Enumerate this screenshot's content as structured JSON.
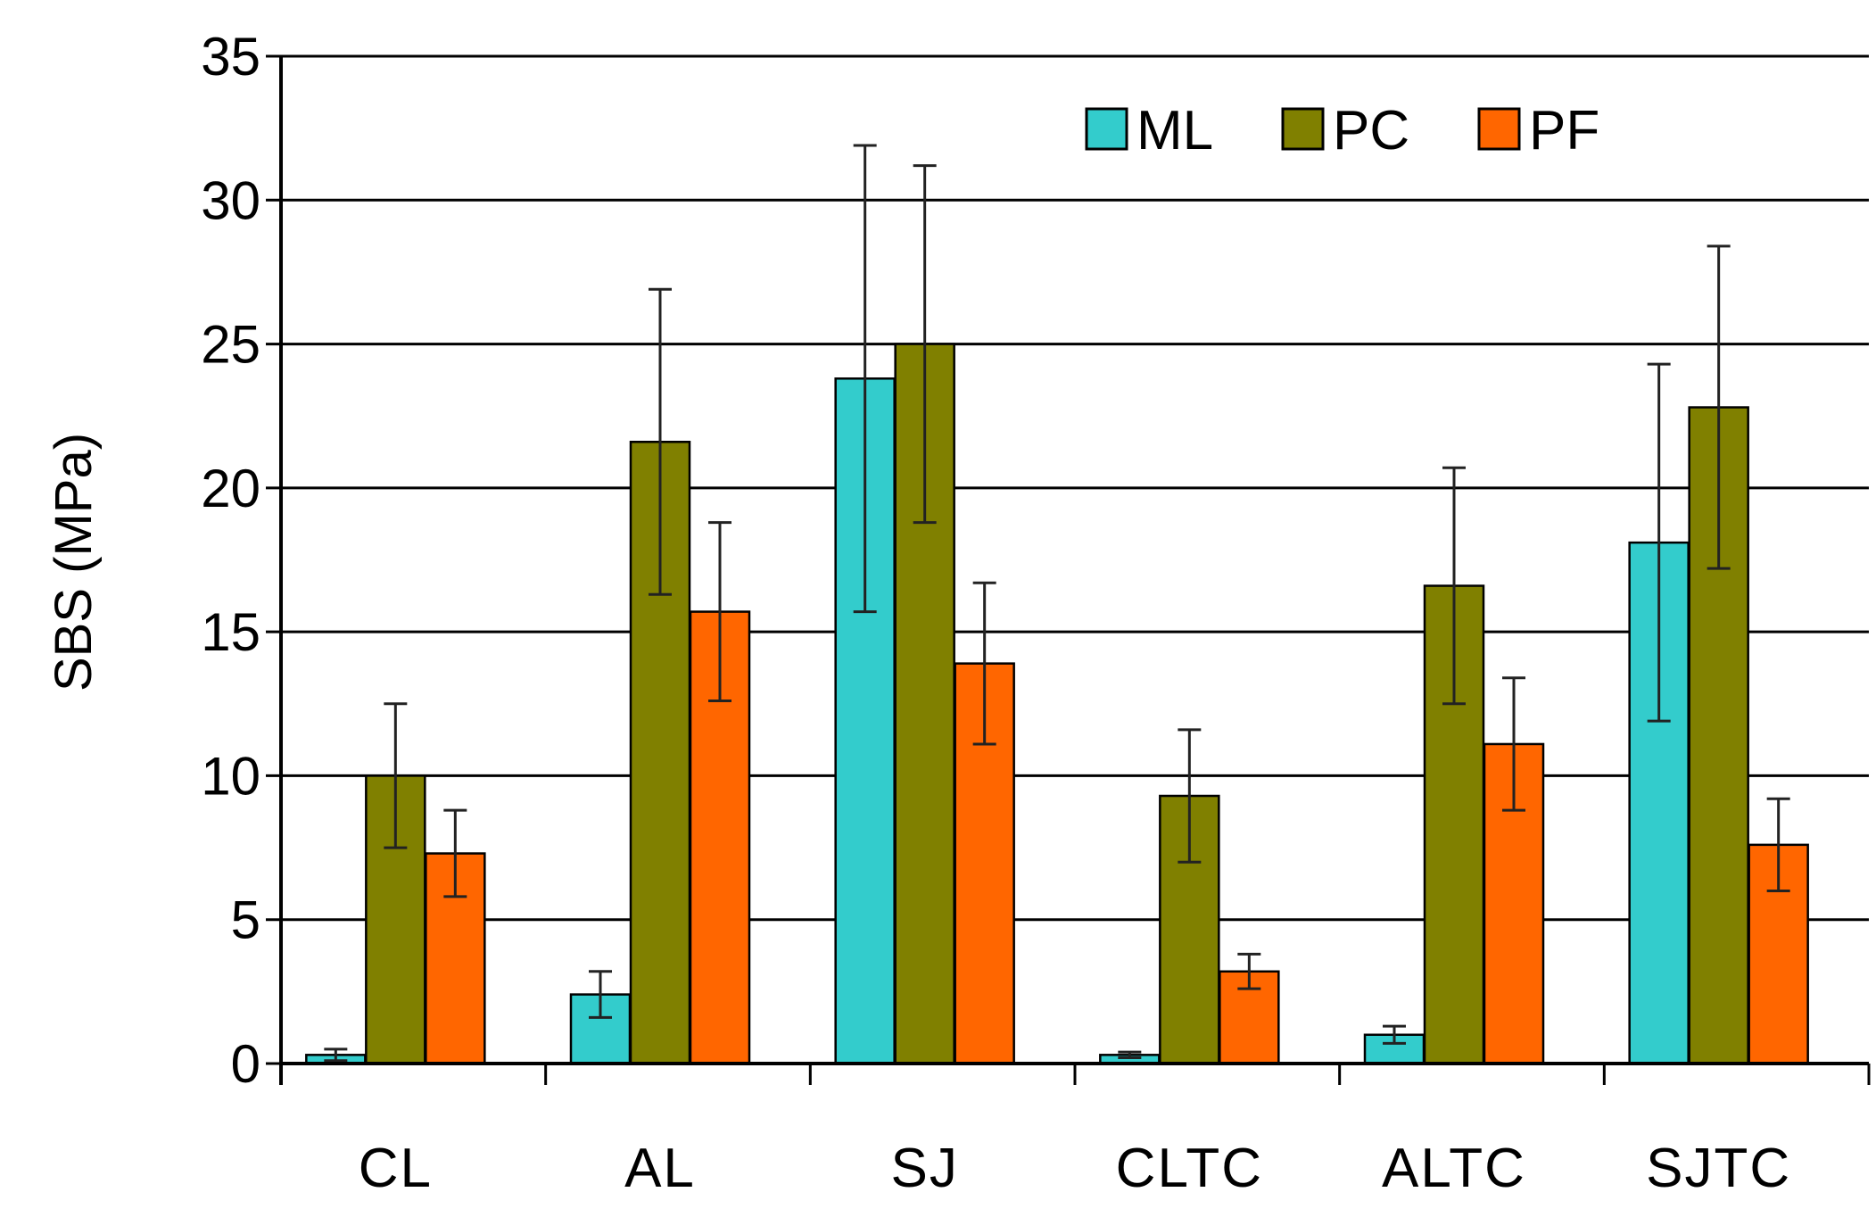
{
  "chart_data": {
    "type": "bar",
    "title": "",
    "xlabel": "",
    "ylabel": "SBS (MPa)",
    "ylim": [
      0,
      35
    ],
    "yticks": [
      0,
      5,
      10,
      15,
      20,
      25,
      30,
      35
    ],
    "grid": true,
    "legend_position": "top-right",
    "categories": [
      "CL",
      "AL",
      "SJ",
      "CLTC",
      "ALTC",
      "SJTC"
    ],
    "series": [
      {
        "name": "ML",
        "color": "#33CCCC",
        "values": [
          0.3,
          2.4,
          23.8,
          0.3,
          1.0,
          18.1
        ],
        "error": [
          0.2,
          0.8,
          8.1,
          0.1,
          0.3,
          6.2
        ]
      },
      {
        "name": "PC",
        "color": "#808000",
        "values": [
          10.0,
          21.6,
          25.0,
          9.3,
          16.6,
          22.8
        ],
        "error": [
          2.5,
          5.3,
          6.2,
          2.3,
          4.1,
          5.6
        ]
      },
      {
        "name": "PF",
        "color": "#FF6600",
        "values": [
          7.3,
          15.7,
          13.9,
          3.2,
          11.1,
          7.6
        ],
        "error": [
          1.5,
          3.1,
          2.8,
          0.6,
          2.3,
          1.6
        ]
      }
    ]
  }
}
